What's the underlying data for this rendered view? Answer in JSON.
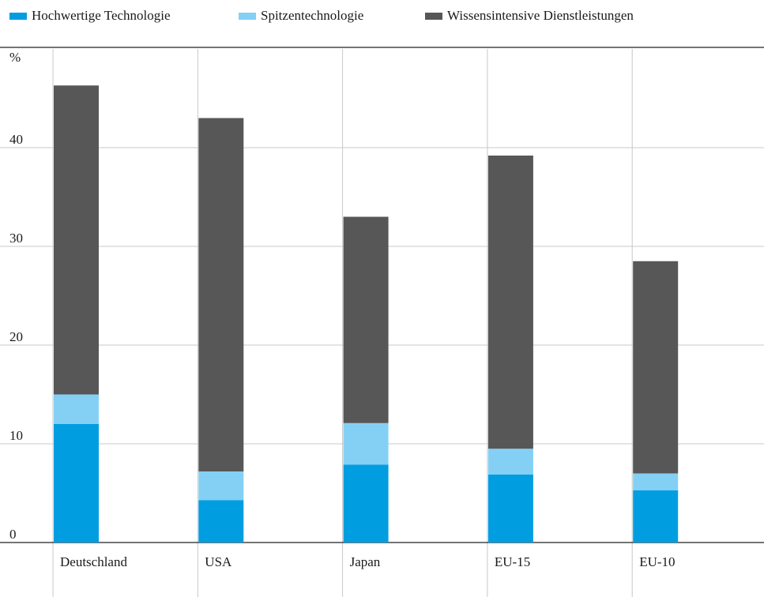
{
  "chart_data": {
    "type": "bar",
    "stacked": true,
    "categories": [
      "Deutschland",
      "USA",
      "Japan",
      "EU-15",
      "EU-10"
    ],
    "series": [
      {
        "name": "Hochwertige Technologie",
        "color": "#009ee0",
        "values": [
          12.0,
          4.3,
          7.9,
          6.9,
          5.3
        ]
      },
      {
        "name": "Spitzentechnologie",
        "color": "#84d0f5",
        "values": [
          3.0,
          2.9,
          4.2,
          2.6,
          1.7
        ]
      },
      {
        "name": "Wissensintensive Dienstleistungen",
        "color": "#575757",
        "values": [
          31.3,
          35.8,
          20.9,
          29.7,
          21.5
        ]
      }
    ],
    "ylabel": "%",
    "ylim": [
      0,
      50
    ],
    "yticks": [
      0,
      10,
      20,
      30,
      40
    ],
    "grid": true,
    "legend": "top"
  }
}
